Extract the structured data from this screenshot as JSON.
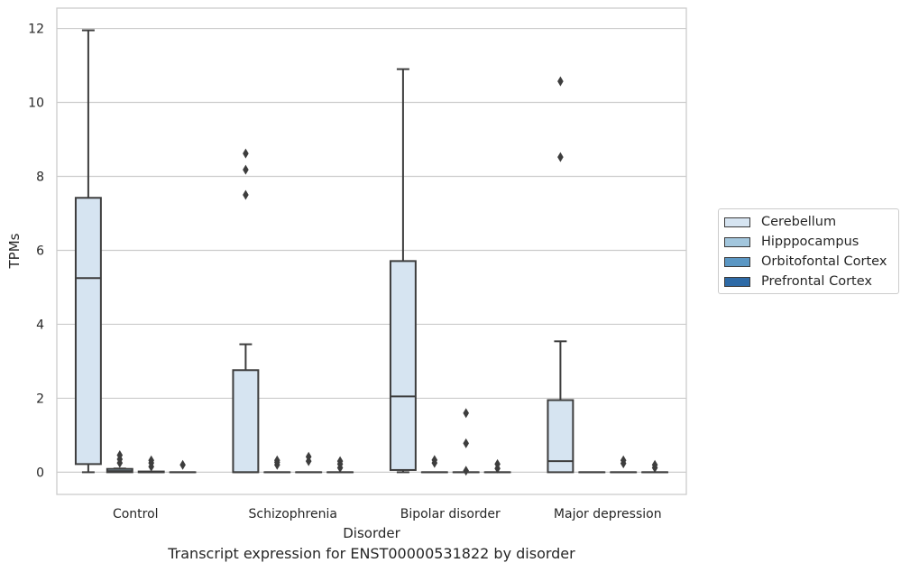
{
  "chart_data": {
    "type": "box",
    "title": "",
    "caption": "Transcript expression for ENST00000531822 by disorder",
    "xlabel": "Disorder",
    "ylabel": "TPMs",
    "ylim": [
      -0.6,
      12.55
    ],
    "yticks": [
      "0",
      "2",
      "4",
      "6",
      "8",
      "10",
      "12"
    ],
    "ytick_values": [
      0,
      2,
      4,
      6,
      8,
      10,
      12
    ],
    "grid": "horizontal",
    "legend_position": "right",
    "categories": [
      "Control",
      "Schizophrenia",
      "Bipolar disorder",
      "Major depression"
    ],
    "series": [
      {
        "name": "Cerebellum",
        "color": "#d6e4f1",
        "boxes": [
          {
            "q1": 0.22,
            "median": 5.25,
            "q3": 7.42,
            "low": 0.0,
            "high": 11.95,
            "outliers": []
          },
          {
            "q1": 0.0,
            "median": 0.0,
            "q3": 2.76,
            "low": 0.0,
            "high": 3.46,
            "outliers": [
              7.5,
              8.18,
              8.62
            ]
          },
          {
            "q1": 0.06,
            "median": 2.05,
            "q3": 5.71,
            "low": 0.0,
            "high": 10.9,
            "outliers": []
          },
          {
            "q1": 0.0,
            "median": 0.3,
            "q3": 1.95,
            "low": 0.0,
            "high": 3.54,
            "outliers": [
              8.52,
              10.57
            ]
          }
        ]
      },
      {
        "name": "Hipppocampus",
        "color": "#a2c6dd",
        "boxes": [
          {
            "q1": 0.0,
            "median": 0.03,
            "q3": 0.09,
            "low": 0.0,
            "high": 0.1,
            "outliers": [
              0.25,
              0.35,
              0.46
            ]
          },
          {
            "q1": 0.0,
            "median": 0.0,
            "q3": 0.0,
            "low": 0.0,
            "high": 0.0,
            "outliers": [
              0.2,
              0.27,
              0.32
            ]
          },
          {
            "q1": 0.0,
            "median": 0.0,
            "q3": 0.0,
            "low": 0.0,
            "high": 0.0,
            "outliers": [
              0.25,
              0.33
            ]
          },
          {
            "q1": 0.0,
            "median": 0.0,
            "q3": 0.0,
            "low": 0.0,
            "high": 0.0,
            "outliers": []
          }
        ]
      },
      {
        "name": "Orbitofontal Cortex",
        "color": "#5b97c4",
        "boxes": [
          {
            "q1": 0.0,
            "median": 0.0,
            "q3": 0.02,
            "low": 0.0,
            "high": 0.02,
            "outliers": [
              0.15,
              0.25,
              0.32
            ]
          },
          {
            "q1": 0.0,
            "median": 0.0,
            "q3": 0.0,
            "low": 0.0,
            "high": 0.0,
            "outliers": [
              0.3,
              0.42
            ]
          },
          {
            "q1": 0.0,
            "median": 0.0,
            "q3": 0.0,
            "low": 0.0,
            "high": 0.0,
            "outliers": [
              0.04,
              0.78,
              1.6
            ]
          },
          {
            "q1": 0.0,
            "median": 0.0,
            "q3": 0.0,
            "low": 0.0,
            "high": 0.0,
            "outliers": [
              0.24,
              0.32
            ]
          }
        ]
      },
      {
        "name": "Prefrontal Cortex",
        "color": "#2e6aa6",
        "boxes": [
          {
            "q1": 0.0,
            "median": 0.0,
            "q3": 0.0,
            "low": 0.0,
            "high": 0.0,
            "outliers": [
              0.2
            ]
          },
          {
            "q1": 0.0,
            "median": 0.0,
            "q3": 0.0,
            "low": 0.0,
            "high": 0.0,
            "outliers": [
              0.12,
              0.22,
              0.3
            ]
          },
          {
            "q1": 0.0,
            "median": 0.0,
            "q3": 0.0,
            "low": 0.0,
            "high": 0.0,
            "outliers": [
              0.1,
              0.22
            ]
          },
          {
            "q1": 0.0,
            "median": 0.0,
            "q3": 0.0,
            "low": 0.0,
            "high": 0.0,
            "outliers": [
              0.12,
              0.2
            ]
          }
        ]
      }
    ]
  }
}
